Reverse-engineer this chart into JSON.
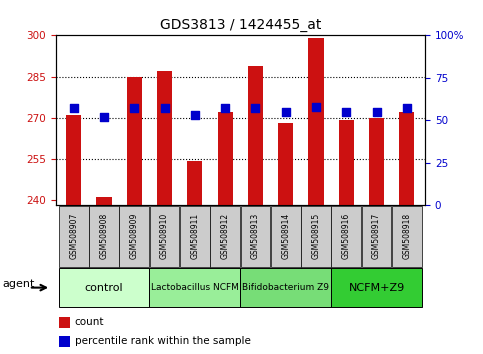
{
  "title": "GDS3813 / 1424455_at",
  "samples": [
    "GSM508907",
    "GSM508908",
    "GSM508909",
    "GSM508910",
    "GSM508911",
    "GSM508912",
    "GSM508913",
    "GSM508914",
    "GSM508915",
    "GSM508916",
    "GSM508917",
    "GSM508918"
  ],
  "count_values": [
    271,
    241,
    285,
    287,
    254,
    272,
    289,
    268,
    299,
    269,
    270,
    272
  ],
  "percentile_values": [
    57,
    52,
    57,
    57,
    53,
    57,
    57,
    55,
    58,
    55,
    55,
    57
  ],
  "ylim_left": [
    238,
    300
  ],
  "ylim_right": [
    0,
    100
  ],
  "yticks_left": [
    240,
    255,
    270,
    285,
    300
  ],
  "yticks_right": [
    0,
    25,
    50,
    75,
    100
  ],
  "grid_lines": [
    255,
    270,
    285
  ],
  "bar_color": "#cc1111",
  "dot_color": "#0000cc",
  "groups": [
    {
      "label": "control",
      "start": 0,
      "end": 2,
      "color": "#ccffcc"
    },
    {
      "label": "Lactobacillus NCFM",
      "start": 3,
      "end": 5,
      "color": "#99ee99"
    },
    {
      "label": "Bifidobacterium Z9",
      "start": 6,
      "end": 8,
      "color": "#77dd77"
    },
    {
      "label": "NCFM+Z9",
      "start": 9,
      "end": 11,
      "color": "#33cc33"
    }
  ],
  "tick_color_left": "#cc1111",
  "tick_color_right": "#0000cc",
  "xtick_bg_color": "#cccccc",
  "bar_width": 0.5,
  "dot_size": 35
}
